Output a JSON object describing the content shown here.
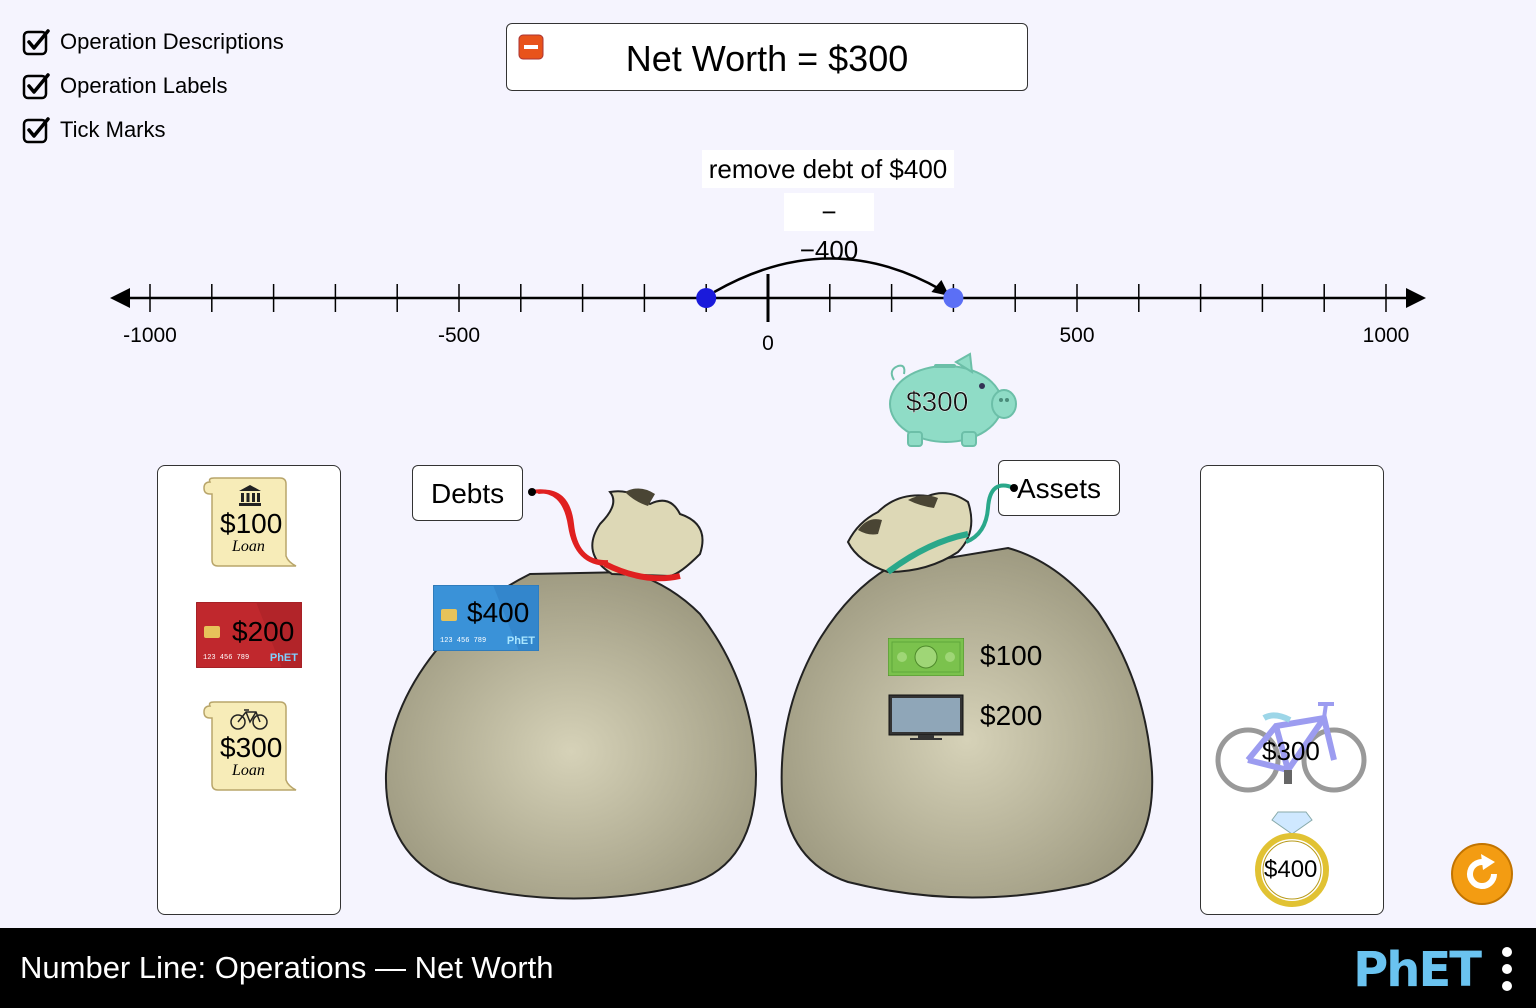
{
  "checkboxes": [
    {
      "label": "Operation Descriptions",
      "checked": true
    },
    {
      "label": "Operation Labels",
      "checked": true
    },
    {
      "label": "Tick Marks",
      "checked": true
    }
  ],
  "net_worth": {
    "text": "Net Worth = $300",
    "collapse_icon": "minus-icon",
    "accent": "#e8531b"
  },
  "operation": {
    "description": "remove debt of $400",
    "label": "− −400"
  },
  "number_line": {
    "min": -1000,
    "max": 1000,
    "tick_step": 100,
    "labels": [
      "-1000",
      "-500",
      "0",
      "500",
      "1000"
    ],
    "start_value": -100,
    "end_value": 300,
    "start_color": "#1a1adb",
    "end_color": "#5b6ff5"
  },
  "piggy_bank": {
    "value": "$300",
    "color": "#8fdcc6"
  },
  "left_box_items": [
    {
      "type": "loan",
      "icon": "bank-icon",
      "value": "$100",
      "sub": "Loan"
    },
    {
      "type": "credit-card",
      "icon": "chip-icon",
      "value": "$200",
      "card_number": "123 456 789",
      "brand": "PhET",
      "color": "#c0282d"
    },
    {
      "type": "loan",
      "icon": "bicycle-icon",
      "value": "$300",
      "sub": "Loan"
    }
  ],
  "debts_bag": {
    "label": "Debts",
    "string_color": "#e02020",
    "items": [
      {
        "type": "credit-card",
        "value": "$400",
        "card_number": "123 456 789",
        "brand": "PhET",
        "color": "#3a92d8"
      }
    ]
  },
  "assets_bag": {
    "label": "Assets",
    "string_color": "#2aa88a",
    "items": [
      {
        "type": "cash",
        "icon": "cash-icon",
        "value": "$100"
      },
      {
        "type": "tv",
        "icon": "tv-icon",
        "value": "$200"
      }
    ]
  },
  "right_box_items": [
    {
      "type": "bicycle",
      "icon": "bicycle-icon",
      "value": "$300"
    },
    {
      "type": "ring",
      "icon": "ring-icon",
      "value": "$400"
    }
  ],
  "footer": {
    "title": "Number Line: Operations — Net Worth",
    "logo": "PhET"
  }
}
